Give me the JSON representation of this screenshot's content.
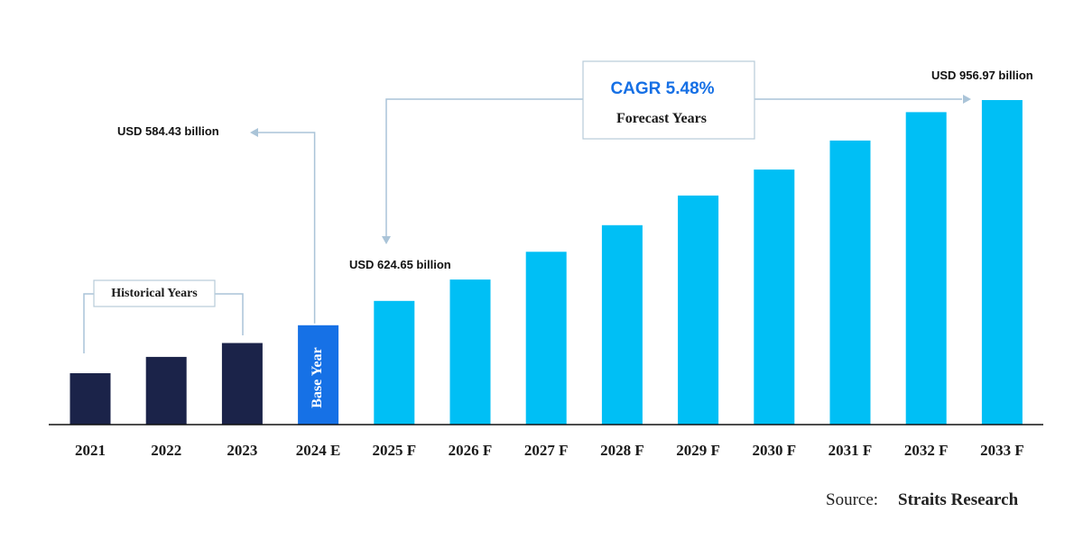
{
  "chart_data": {
    "type": "bar",
    "categories": [
      "2021",
      "2022",
      "2023",
      "2024 E",
      "2025 F",
      "2026 F",
      "2027 F",
      "2028 F",
      "2029 F",
      "2030 F",
      "2031 F",
      "2032 F",
      "2033 F"
    ],
    "values": [
      505,
      532,
      555,
      584.43,
      624.65,
      660,
      706,
      750,
      799,
      842,
      890,
      937,
      956.97
    ],
    "bar_groups": [
      "historical",
      "historical",
      "historical",
      "base",
      "forecast",
      "forecast",
      "forecast",
      "forecast",
      "forecast",
      "forecast",
      "forecast",
      "forecast",
      "forecast"
    ],
    "colors": {
      "historical": "#1b2349",
      "base": "#1671e6",
      "forecast": "#00bff5",
      "connector": "#aac4d8",
      "cagr_text": "#1670e5",
      "axis": "#111111"
    },
    "ylim": [
      420,
      1000
    ],
    "grid": false,
    "base_bar_label": "Base Year",
    "annotations": {
      "base_value": "USD 584.43 billion",
      "first_forecast_value": "USD 624.65 billion",
      "last_forecast_value": "USD 956.97 billion",
      "historical_box": "Historical Years",
      "cagr": "CAGR 5.48%",
      "forecast_box": "Forecast Years"
    },
    "source": {
      "prefix": "Source:",
      "name": "Straits Research"
    }
  }
}
